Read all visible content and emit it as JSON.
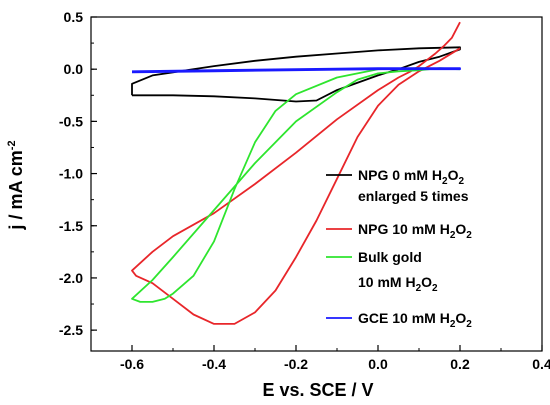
{
  "chart_data": {
    "type": "line",
    "title": "",
    "xlabel": "E vs. SCE / V",
    "ylabel": "j / mA cm",
    "ylabel_sup": "-2",
    "xlim": [
      -0.7,
      0.4
    ],
    "ylim": [
      -2.7,
      0.5
    ],
    "xticks": [
      "-0.6",
      "-0.4",
      "-0.2",
      "0.0",
      "0.2",
      "0.4"
    ],
    "yticks": [
      "0.5",
      "0.0",
      "-0.5",
      "-1.0",
      "-1.5",
      "-2.0",
      "-2.5"
    ],
    "grid": false,
    "legend_position": "right",
    "legend": [
      {
        "lines": [
          {
            "text": "NPG 0 mM H",
            "sub": "2",
            "text2": "O",
            "sub2": "2"
          },
          {
            "text": "enlarged 5 times"
          }
        ],
        "color": "#000000"
      },
      {
        "lines": [
          {
            "text": "NPG 10 mM H",
            "sub": "2",
            "text2": "O",
            "sub2": "2"
          }
        ],
        "color": "#e8262a"
      },
      {
        "lines": [
          {
            "text": "Bulk gold"
          },
          {
            "text": "10 mM H",
            "sub": "2",
            "text2": "O",
            "sub2": "2"
          }
        ],
        "color": "#2ee52e"
      },
      {
        "lines": [
          {
            "text": "GCE 10 mM H",
            "sub": "2",
            "text2": "O",
            "sub2": "2"
          }
        ],
        "color": "#1a1aff"
      }
    ],
    "series": [
      {
        "color": "#000000",
        "points": [
          [
            -0.6,
            -0.25
          ],
          [
            -0.6,
            -0.14
          ],
          [
            -0.55,
            -0.06
          ],
          [
            -0.5,
            -0.03
          ],
          [
            -0.4,
            0.03
          ],
          [
            -0.3,
            0.08
          ],
          [
            -0.2,
            0.12
          ],
          [
            -0.1,
            0.15
          ],
          [
            0.0,
            0.18
          ],
          [
            0.1,
            0.2
          ],
          [
            0.2,
            0.21
          ],
          [
            0.2,
            0.19
          ],
          [
            0.15,
            0.12
          ],
          [
            0.1,
            0.07
          ],
          [
            0.05,
            0.0
          ],
          [
            0.0,
            -0.06
          ],
          [
            -0.1,
            -0.2
          ],
          [
            -0.15,
            -0.3
          ],
          [
            -0.2,
            -0.31
          ],
          [
            -0.3,
            -0.28
          ],
          [
            -0.4,
            -0.26
          ],
          [
            -0.5,
            -0.25
          ],
          [
            -0.6,
            -0.25
          ]
        ]
      },
      {
        "color": "#e8262a",
        "points": [
          [
            0.2,
            0.45
          ],
          [
            0.18,
            0.3
          ],
          [
            0.16,
            0.22
          ],
          [
            0.14,
            0.15
          ],
          [
            0.12,
            0.09
          ],
          [
            0.1,
            0.03
          ],
          [
            0.08,
            -0.02
          ],
          [
            0.05,
            -0.08
          ],
          [
            0.0,
            -0.2
          ],
          [
            -0.1,
            -0.48
          ],
          [
            -0.2,
            -0.8
          ],
          [
            -0.3,
            -1.1
          ],
          [
            -0.4,
            -1.38
          ],
          [
            -0.5,
            -1.6
          ],
          [
            -0.55,
            -1.75
          ],
          [
            -0.6,
            -1.93
          ],
          [
            -0.59,
            -1.98
          ],
          [
            -0.55,
            -2.05
          ],
          [
            -0.5,
            -2.2
          ],
          [
            -0.45,
            -2.35
          ],
          [
            -0.4,
            -2.44
          ],
          [
            -0.35,
            -2.44
          ],
          [
            -0.3,
            -2.33
          ],
          [
            -0.25,
            -2.12
          ],
          [
            -0.2,
            -1.8
          ],
          [
            -0.15,
            -1.45
          ],
          [
            -0.1,
            -1.05
          ],
          [
            -0.05,
            -0.65
          ],
          [
            0.0,
            -0.35
          ],
          [
            0.05,
            -0.15
          ],
          [
            0.1,
            -0.02
          ],
          [
            0.15,
            0.08
          ],
          [
            0.2,
            0.2
          ]
        ]
      },
      {
        "color": "#2ee52e",
        "points": [
          [
            0.2,
            0.0
          ],
          [
            0.15,
            0.01
          ],
          [
            0.1,
            -0.01
          ],
          [
            0.05,
            -0.02
          ],
          [
            0.0,
            -0.04
          ],
          [
            -0.05,
            -0.1
          ],
          [
            -0.1,
            -0.22
          ],
          [
            -0.2,
            -0.5
          ],
          [
            -0.3,
            -0.9
          ],
          [
            -0.4,
            -1.35
          ],
          [
            -0.5,
            -1.8
          ],
          [
            -0.55,
            -2.02
          ],
          [
            -0.6,
            -2.2
          ],
          [
            -0.58,
            -2.23
          ],
          [
            -0.55,
            -2.23
          ],
          [
            -0.52,
            -2.2
          ],
          [
            -0.5,
            -2.15
          ],
          [
            -0.45,
            -1.98
          ],
          [
            -0.4,
            -1.65
          ],
          [
            -0.35,
            -1.15
          ],
          [
            -0.3,
            -0.7
          ],
          [
            -0.25,
            -0.4
          ],
          [
            -0.2,
            -0.24
          ],
          [
            -0.1,
            -0.08
          ],
          [
            0.0,
            0.0
          ],
          [
            0.1,
            0.01
          ],
          [
            0.2,
            0.0
          ]
        ]
      },
      {
        "color": "#1a1aff",
        "points": [
          [
            -0.6,
            -0.03
          ],
          [
            -0.4,
            -0.02
          ],
          [
            -0.2,
            -0.01
          ],
          [
            0.0,
            0.0
          ],
          [
            0.2,
            0.0
          ],
          [
            0.2,
            0.01
          ],
          [
            0.0,
            0.01
          ],
          [
            -0.2,
            0.0
          ],
          [
            -0.4,
            -0.01
          ],
          [
            -0.6,
            -0.02
          ]
        ]
      }
    ]
  }
}
